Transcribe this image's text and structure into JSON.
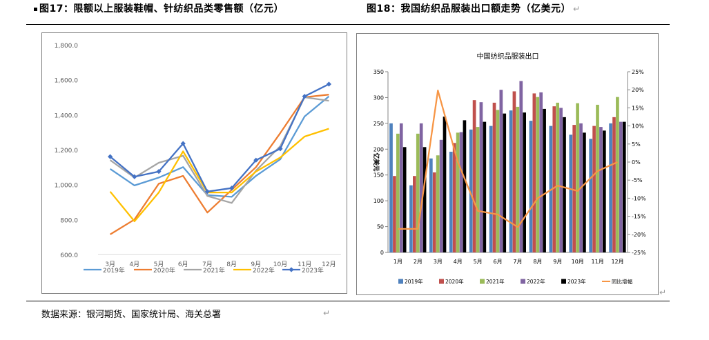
{
  "titles": {
    "left": "图17：限额以上服装鞋帽、针纺织品类零售额（亿元）",
    "right": "图18：我国纺织品服装出口额走势（亿美元）"
  },
  "source": "数据来源：银河期货、国家统计局、海关总署",
  "return_mark": "↵",
  "chart_data": [
    {
      "type": "line",
      "title": "",
      "categories": [
        "3月",
        "4月",
        "5月",
        "6月",
        "7月",
        "8月",
        "9月",
        "10月",
        "11月",
        "12月"
      ],
      "ylim": [
        600,
        1800
      ],
      "yticks": [
        "600.0",
        "800.0",
        "1,000.0",
        "1,200.0",
        "1,400.0",
        "1,600.0",
        "1,800.0"
      ],
      "grid": false,
      "legend_position": "bottom",
      "series": [
        {
          "name": "2019年",
          "color": "#5b9bd5",
          "values": [
            1090,
            995,
            1040,
            1100,
            940,
            930,
            1050,
            1145,
            1390,
            1505
          ]
        },
        {
          "name": "2020年",
          "color": "#ed7d31",
          "values": [
            715,
            800,
            1005,
            1050,
            840,
            970,
            1100,
            1295,
            1500,
            1515
          ]
        },
        {
          "name": "2021年",
          "color": "#a5a5a5",
          "values": [
            1140,
            1040,
            1125,
            1165,
            935,
            895,
            1080,
            1220,
            1500,
            1480
          ]
        },
        {
          "name": "2022年",
          "color": "#ffc000",
          "values": [
            960,
            790,
            955,
            1190,
            955,
            955,
            1075,
            1155,
            1275,
            1320
          ]
        },
        {
          "name": "2023年",
          "color": "#4472c4",
          "marker": "diamond",
          "values": [
            1160,
            1045,
            1075,
            1235,
            960,
            980,
            1140,
            1205,
            1505,
            1575
          ]
        }
      ]
    },
    {
      "type": "bar",
      "title": "中国纺织品服装出口",
      "categories": [
        "1月",
        "2月",
        "3月",
        "4月",
        "5月",
        "6月",
        "7月",
        "8月",
        "9月",
        "10月",
        "11月",
        "12月"
      ],
      "ylabel": "亿美元",
      "ylim": [
        0,
        350
      ],
      "y2lim": [
        -25,
        25
      ],
      "yticks": [
        "0",
        "50",
        "100",
        "150",
        "200",
        "250",
        "300",
        "350"
      ],
      "y2ticks": [
        "-25%",
        "-20%",
        "-15%",
        "-10%",
        "-5%",
        "0%",
        "5%",
        "10%",
        "15%",
        "20%",
        "25%"
      ],
      "grid": false,
      "legend_position": "bottom",
      "series": [
        {
          "name": "2019年",
          "color": "#4f81bd",
          "values": [
            250,
            130,
            182,
            195,
            238,
            245,
            275,
            255,
            245,
            228,
            220,
            250
          ]
        },
        {
          "name": "2020年",
          "color": "#c0504d",
          "values": [
            148,
            148,
            155,
            212,
            295,
            290,
            312,
            308,
            283,
            247,
            245,
            262
          ]
        },
        {
          "name": "2021年",
          "color": "#9bbb59",
          "values": [
            230,
            230,
            188,
            232,
            243,
            276,
            282,
            301,
            290,
            289,
            286,
            301
          ]
        },
        {
          "name": "2022年",
          "color": "#8064a2",
          "values": [
            250,
            250,
            218,
            233,
            291,
            315,
            332,
            310,
            280,
            250,
            243,
            253
          ]
        },
        {
          "name": "2023年",
          "color": "#000000",
          "values": [
            204,
            204,
            263,
            256,
            253,
            269,
            271,
            278,
            262,
            232,
            236,
            253
          ]
        },
        {
          "name": "同比增幅",
          "color": "#f79646",
          "type": "line",
          "axis": "secondary",
          "values": [
            -18.5,
            -18.5,
            19.8,
            0,
            -13.5,
            -14.5,
            -18,
            -10,
            -6.5,
            -8,
            -2.5,
            0
          ]
        }
      ]
    }
  ]
}
